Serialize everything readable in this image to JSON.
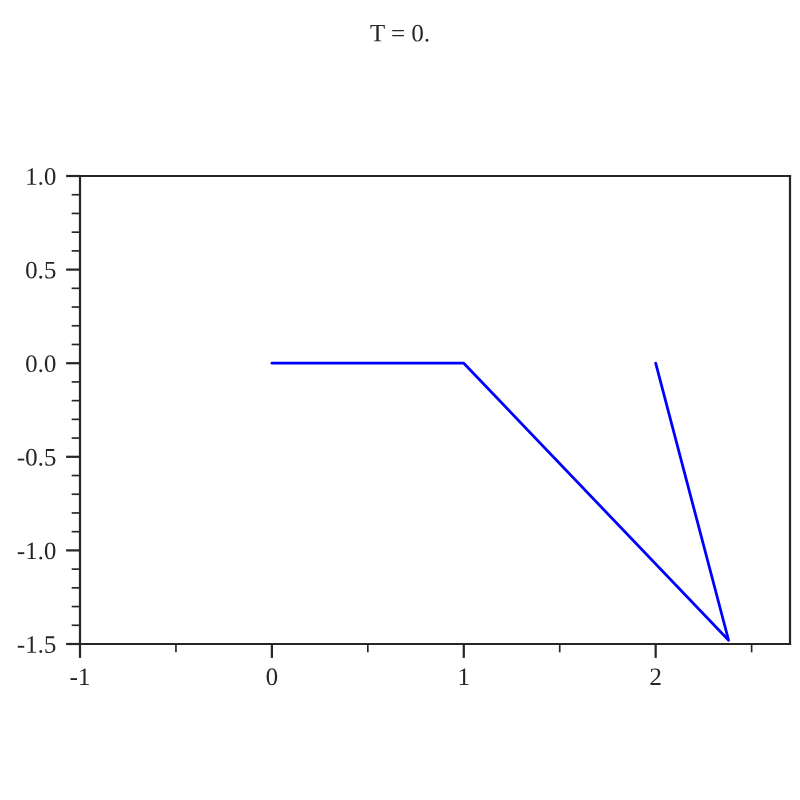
{
  "chart_data": {
    "type": "line",
    "title": "T = 0.",
    "series": [
      {
        "color": "#0000ff",
        "x": [
          0,
          1,
          2.38,
          2
        ],
        "values": [
          0,
          0,
          -1.48,
          0
        ]
      }
    ],
    "xlim": [
      -1,
      2.7
    ],
    "ylim": [
      -1.5,
      1.0
    ],
    "xticks": [
      -1,
      {
        "value": -0.5,
        "label": null
      },
      0,
      {
        "value": 0.5,
        "label": null
      },
      1,
      {
        "value": 1.5,
        "label": null
      },
      2,
      {
        "value": 2.5,
        "label": null
      }
    ],
    "yticks": [
      -1.5,
      {
        "value": -1.4,
        "label": null
      },
      {
        "value": -1.3,
        "label": null
      },
      {
        "value": -1.2,
        "label": null
      },
      {
        "value": -1.1,
        "label": null
      },
      {
        "value": -1.0,
        "label": "-1.0"
      },
      {
        "value": -0.9,
        "label": null
      },
      {
        "value": -0.8,
        "label": null
      },
      {
        "value": -0.7,
        "label": null
      },
      {
        "value": -0.6,
        "label": null
      },
      -0.5,
      {
        "value": -0.4,
        "label": null
      },
      {
        "value": -0.3,
        "label": null
      },
      {
        "value": -0.2,
        "label": null
      },
      {
        "value": -0.1,
        "label": null
      },
      {
        "value": 0.0,
        "label": "0.0"
      },
      {
        "value": 0.1,
        "label": null
      },
      {
        "value": 0.2,
        "label": null
      },
      {
        "value": 0.3,
        "label": null
      },
      {
        "value": 0.4,
        "label": null
      },
      0.5,
      {
        "value": 0.6,
        "label": null
      },
      {
        "value": 0.7,
        "label": null
      },
      {
        "value": 0.8,
        "label": null
      },
      {
        "value": 0.9,
        "label": null
      },
      {
        "value": 1.0,
        "label": "1.0"
      }
    ],
    "grid": false,
    "legend": false
  }
}
